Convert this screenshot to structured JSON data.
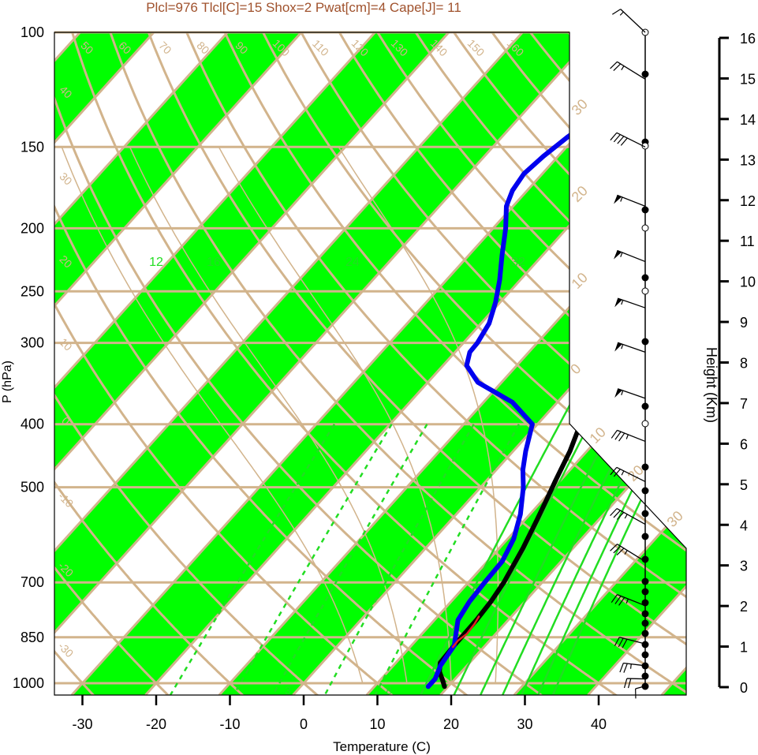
{
  "chart_data": {
    "type": "line",
    "title": "Plcl=976 Tlcl[C]=15 Shox=2 Pwat[cm]=4 Cape[J]= 11",
    "xlabel": "Temperature (C)",
    "ylabel": "P (hPa)",
    "right_axis_label": "Height (Km)",
    "x_ticks": [
      "-30",
      "-20",
      "-10",
      "0",
      "10",
      "20",
      "30",
      "40"
    ],
    "x_tick_values": [
      -30,
      -20,
      -10,
      0,
      10,
      20,
      30,
      40
    ],
    "y_ticks": [
      "100",
      "150",
      "200",
      "250",
      "300",
      "400",
      "500",
      "700",
      "850",
      "1000"
    ],
    "y_tick_values": [
      100,
      150,
      200,
      250,
      300,
      400,
      500,
      700,
      850,
      1000
    ],
    "height_ticks": [
      "0",
      "1",
      "2",
      "3",
      "4",
      "5",
      "6",
      "7",
      "8",
      "9",
      "10",
      "11",
      "12",
      "13",
      "14",
      "15",
      "16"
    ],
    "height_tick_values": [
      0,
      1,
      2,
      3,
      4,
      5,
      6,
      7,
      8,
      9,
      10,
      11,
      12,
      13,
      14,
      15,
      16
    ],
    "xlim": [
      -34,
      52
    ],
    "ylim": [
      1050,
      100
    ],
    "y_scale": "log",
    "dry_adiabat_labels": [
      "50",
      "60",
      "70",
      "80",
      "90",
      "100",
      "110",
      "120",
      "130",
      "140",
      "150",
      "160"
    ],
    "isotherm_labels_left": [
      "40",
      "30",
      "20",
      "10",
      "0",
      "-10",
      "-20",
      "-30"
    ],
    "isotherm_labels_right": [
      "30",
      "20",
      "10",
      "0",
      "10",
      "20",
      "30"
    ],
    "mixing_ratio_labels_upper": [
      "12",
      "16",
      "24",
      "32"
    ],
    "mixing_ratio_labels_lower": [
      "3",
      "8"
    ],
    "series": [
      {
        "color": "#000000",
        "points": [
          [
            19.5,
            1012
          ],
          [
            18.5,
            990
          ],
          [
            17.0,
            960
          ],
          [
            16.0,
            930
          ],
          [
            15.8,
            880
          ],
          [
            15.7,
            800
          ],
          [
            15.4,
            750
          ],
          [
            14.8,
            700
          ],
          [
            13.2,
            620
          ],
          [
            11.6,
            560
          ],
          [
            10.4,
            520
          ],
          [
            9.4,
            490
          ],
          [
            7.7,
            440
          ],
          [
            5.8,
            400
          ],
          [
            3.8,
            360
          ],
          [
            1.9,
            330
          ],
          [
            -0.1,
            300
          ],
          [
            -2.4,
            270
          ],
          [
            -4.1,
            250
          ],
          [
            -5.5,
            230
          ],
          [
            -6.3,
            210
          ],
          [
            -6.8,
            195
          ],
          [
            -6.5,
            185
          ],
          [
            -5.6,
            175
          ],
          [
            -4.7,
            165
          ],
          [
            -3.3,
            155
          ],
          [
            -1.6,
            145
          ],
          [
            0.1,
            135
          ],
          [
            1.8,
            125
          ],
          [
            3.5,
            115
          ],
          [
            5.5,
            107
          ],
          [
            8.2,
            100
          ]
        ]
      },
      {
        "color": "#0000ee",
        "points": [
          [
            17.3,
            1012
          ],
          [
            17.3,
            985
          ],
          [
            16.4,
            940
          ],
          [
            15.8,
            875
          ],
          [
            13.2,
            800
          ],
          [
            12.5,
            750
          ],
          [
            12.2,
            700
          ],
          [
            12.0,
            650
          ],
          [
            10.8,
            600
          ],
          [
            8.7,
            550
          ],
          [
            5.8,
            500
          ],
          [
            3.6,
            470
          ],
          [
            1.7,
            440
          ],
          [
            -0.7,
            400
          ],
          [
            -6.1,
            370
          ],
          [
            -13.2,
            345
          ],
          [
            -16.8,
            325
          ],
          [
            -18.0,
            310
          ],
          [
            -18.1,
            300
          ],
          [
            -18.9,
            280
          ],
          [
            -20.6,
            260
          ],
          [
            -22.8,
            240
          ],
          [
            -25.5,
            220
          ],
          [
            -28.3,
            200
          ],
          [
            -30.9,
            185
          ],
          [
            -32.0,
            175
          ],
          [
            -32.5,
            165
          ],
          [
            -32.0,
            155
          ],
          [
            -31.1,
            145
          ],
          [
            -30.2,
            138
          ],
          [
            -31.7,
            130
          ],
          [
            -33.4,
            122
          ],
          [
            -34.6,
            115
          ],
          [
            -35.2,
            108
          ],
          [
            -35.5,
            100
          ]
        ]
      },
      {
        "color": "#e02020",
        "points": [
          [
            15.8,
            880
          ],
          [
            15.7,
            860
          ],
          [
            16.1,
            840
          ],
          [
            15.9,
            810
          ],
          [
            15.6,
            790
          ]
        ]
      }
    ],
    "winds": [
      {
        "p": 100,
        "spd": 15,
        "dir": 280
      },
      {
        "p": 118,
        "spd": 25,
        "dir": 260
      },
      {
        "p": 150,
        "spd": 40,
        "dir": 250
      },
      {
        "p": 185,
        "spd": 55,
        "dir": 240
      },
      {
        "p": 225,
        "spd": 55,
        "dir": 240
      },
      {
        "p": 265,
        "spd": 55,
        "dir": 235
      },
      {
        "p": 310,
        "spd": 55,
        "dir": 235
      },
      {
        "p": 365,
        "spd": 55,
        "dir": 235
      },
      {
        "p": 425,
        "spd": 35,
        "dir": 240
      },
      {
        "p": 490,
        "spd": 25,
        "dir": 250
      },
      {
        "p": 570,
        "spd": 35,
        "dir": 255
      },
      {
        "p": 650,
        "spd": 35,
        "dir": 260
      },
      {
        "p": 760,
        "spd": 35,
        "dir": 240
      },
      {
        "p": 870,
        "spd": 30,
        "dir": 225
      },
      {
        "p": 940,
        "spd": 25,
        "dir": 210
      },
      {
        "p": 985,
        "spd": 20,
        "dir": 200
      },
      {
        "p": 1010,
        "spd": 10,
        "dir": 180
      }
    ]
  }
}
